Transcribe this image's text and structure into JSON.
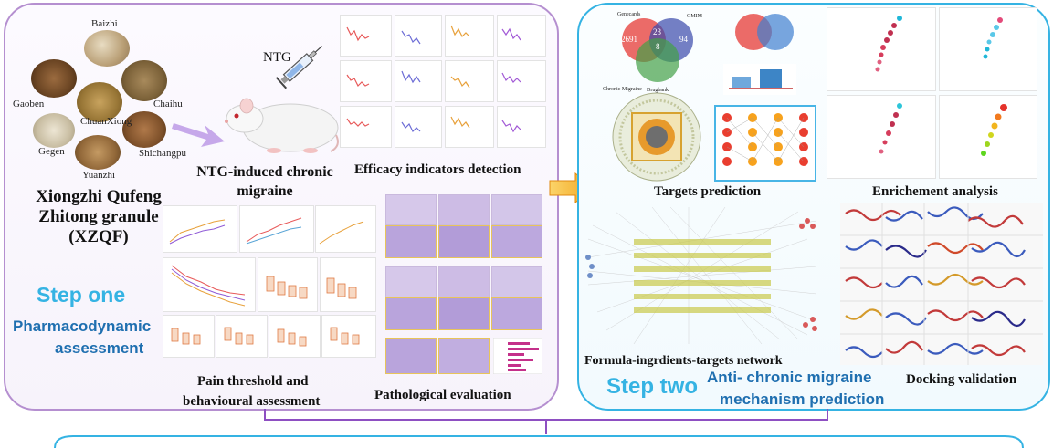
{
  "colors": {
    "step_blue": "#32a6dc",
    "step_dark_blue": "#1f6fb0",
    "left_border": "#b58fd0",
    "right_border": "#35b3e3",
    "arrow_orange": "#f2a620",
    "rat_arrow_lavender": "#c6a8ea"
  },
  "step_one": {
    "title": "Step one",
    "subtitle_line1": "Pharmacodynamic",
    "subtitle_line2": "assessment",
    "formula": {
      "name_line1": "Xiongzhi Qufeng",
      "name_line2": "Zhitong granule",
      "name_line3": "(XZQF)",
      "herbs": [
        "Baizhi",
        "Chaihu",
        "Shichangpu",
        "Yuanzhi",
        "Gegen",
        "Gaoben",
        "ChuanXiong"
      ]
    },
    "model": {
      "drug_label": "NTG",
      "caption_line1": "NTG-induced chronic",
      "caption_line2": "migraine",
      "icons": [
        "syringe-icon",
        "rat-icon"
      ]
    },
    "efficacy": {
      "caption": "Efficacy indicators detection"
    },
    "pain": {
      "caption_line1": "Pain threshold and",
      "caption_line2": "behavioural assessment"
    },
    "pathology": {
      "caption": "Pathological evaluation"
    }
  },
  "step_two": {
    "title": "Step two",
    "subtitle_line1": "Anti- chronic migraine",
    "subtitle_line2": "mechanism prediction",
    "targets": {
      "caption": "Targets prediction",
      "venn_labels": {
        "a": "Genecards",
        "b": "OMIM",
        "c": "Chronic Migraine",
        "d": "Drugbank"
      },
      "venn_counts": {
        "a_only": "2691",
        "ab": "23",
        "b_only": "94",
        "center": "8"
      }
    },
    "enrichment": {
      "caption": "Enrichement analysis"
    },
    "network": {
      "caption": "Formula-ingrdients-targets network"
    },
    "docking": {
      "caption": "Docking validation"
    }
  }
}
